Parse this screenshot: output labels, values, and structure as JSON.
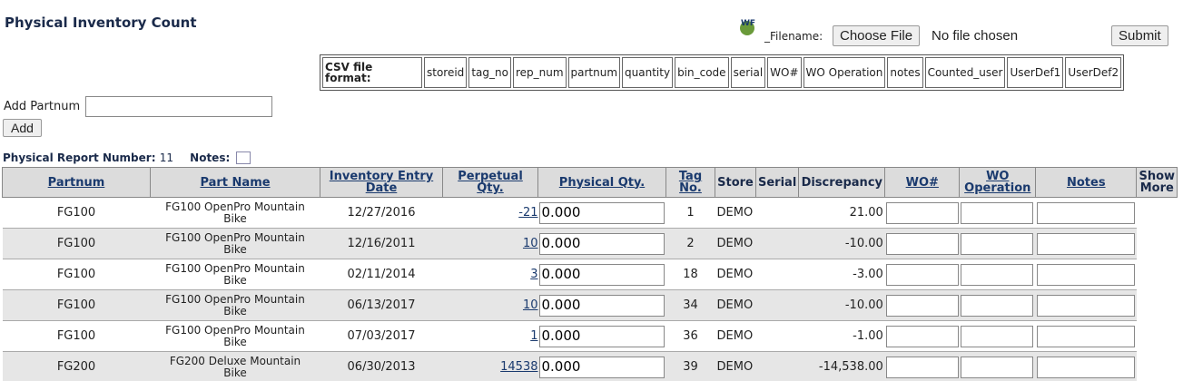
{
  "header": {
    "title": "Physical Inventory Count",
    "filename_label": "_Filename:",
    "choose_file": "Choose File",
    "no_file": "No file chosen",
    "submit": "Submit"
  },
  "csv_format": {
    "label": "CSV file format:",
    "columns": [
      "storeid",
      "tag_no",
      "rep_num",
      "partnum",
      "quantity",
      "bin_code",
      "serial",
      "WO#",
      "WO Operation",
      "notes",
      "Counted_user",
      "UserDef1",
      "UserDef2"
    ]
  },
  "add_partnum": {
    "label": "Add Partnum",
    "button": "Add"
  },
  "report": {
    "number_label": "Physical Report Number:",
    "number": "11",
    "notes_label": "Notes:"
  },
  "table": {
    "headers": [
      "Partnum",
      "Part Name",
      "Inventory Entry Date",
      "Perpetual Qty.",
      "Physical Qty.",
      "Tag No.",
      "Store",
      "Serial",
      "Discrepancy",
      "WO#",
      "WO Operation",
      "Notes",
      "Show More"
    ],
    "rows": [
      {
        "partnum": "FG100",
        "part_name": "FG100 OpenPro Mountain Bike",
        "date": "12/27/2016",
        "perpetual": "-21",
        "physical": "0.000",
        "tag": "1",
        "store": "DEMO",
        "discrepancy": "21.00"
      },
      {
        "partnum": "FG100",
        "part_name": "FG100 OpenPro Mountain Bike",
        "date": "12/16/2011",
        "perpetual": "10",
        "physical": "0.000",
        "tag": "2",
        "store": "DEMO",
        "discrepancy": "-10.00"
      },
      {
        "partnum": "FG100",
        "part_name": "FG100 OpenPro Mountain Bike",
        "date": "02/11/2014",
        "perpetual": "3",
        "physical": "0.000",
        "tag": "18",
        "store": "DEMO",
        "discrepancy": "-3.00"
      },
      {
        "partnum": "FG100",
        "part_name": "FG100 OpenPro Mountain Bike",
        "date": "06/13/2017",
        "perpetual": "10",
        "physical": "0.000",
        "tag": "34",
        "store": "DEMO",
        "discrepancy": "-10.00"
      },
      {
        "partnum": "FG100",
        "part_name": "FG100 OpenPro Mountain Bike",
        "date": "07/03/2017",
        "perpetual": "1",
        "physical": "0.000",
        "tag": "36",
        "store": "DEMO",
        "discrepancy": "-1.00"
      },
      {
        "partnum": "FG200",
        "part_name": "FG200 Deluxe Mountain Bike",
        "date": "06/30/2013",
        "perpetual": "14538",
        "physical": "0.000",
        "tag": "39",
        "store": "DEMO",
        "discrepancy": "-14,538.00"
      }
    ]
  }
}
